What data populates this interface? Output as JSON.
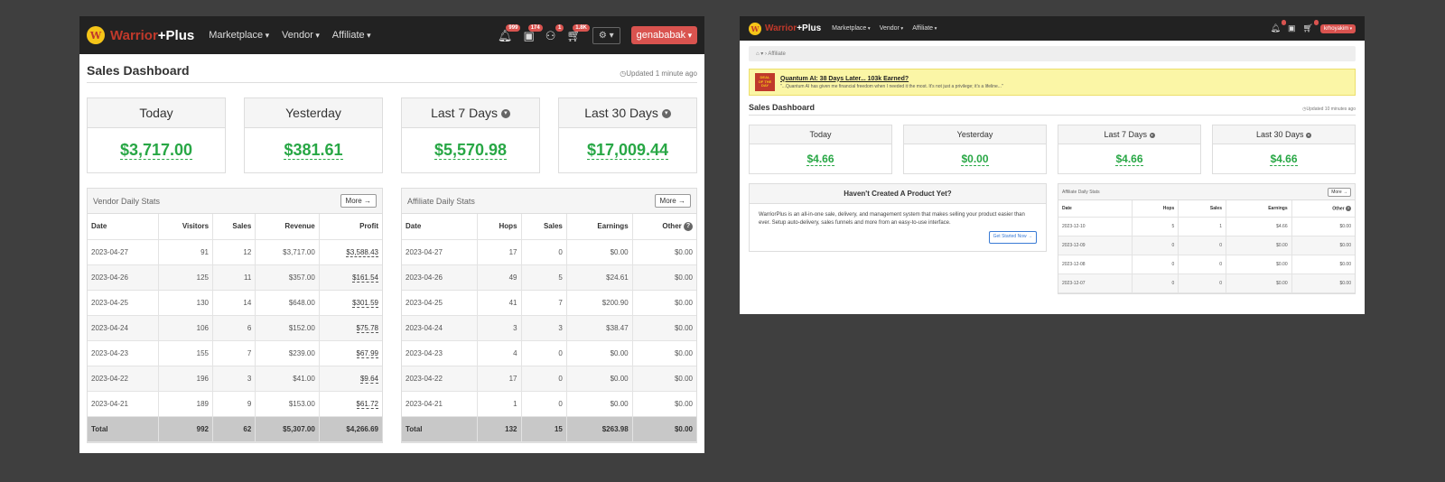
{
  "left": {
    "nav": {
      "logo_warrior": "Warrior",
      "logo_plus": "+Plus",
      "menu": [
        "Marketplace",
        "Vendor",
        "Affiliate"
      ],
      "badges": [
        "999",
        "174",
        "1",
        "1.8K"
      ],
      "user": "genababak"
    },
    "page_title": "Sales Dashboard",
    "updated": "Updated 1 minute ago",
    "cards": [
      {
        "label": "Today",
        "value": "$3,717.00"
      },
      {
        "label": "Yesterday",
        "value": "$381.61"
      },
      {
        "label": "Last 7 Days",
        "value": "$5,570.98"
      },
      {
        "label": "Last 30 Days",
        "value": "$17,009.44"
      }
    ],
    "vendor": {
      "title": "Vendor Daily Stats",
      "more": "More",
      "columns": [
        "Date",
        "Visitors",
        "Sales",
        "Revenue",
        "Profit"
      ],
      "rows": [
        [
          "2023-04-27",
          "91",
          "12",
          "$3,717.00",
          "$3,588.43"
        ],
        [
          "2023-04-26",
          "125",
          "11",
          "$357.00",
          "$161.54"
        ],
        [
          "2023-04-25",
          "130",
          "14",
          "$648.00",
          "$301.59"
        ],
        [
          "2023-04-24",
          "106",
          "6",
          "$152.00",
          "$75.78"
        ],
        [
          "2023-04-23",
          "155",
          "7",
          "$239.00",
          "$67.99"
        ],
        [
          "2023-04-22",
          "196",
          "3",
          "$41.00",
          "$9.64"
        ],
        [
          "2023-04-21",
          "189",
          "9",
          "$153.00",
          "$61.72"
        ]
      ],
      "total": [
        "Total",
        "992",
        "62",
        "$5,307.00",
        "$4,266.69"
      ]
    },
    "affiliate": {
      "title": "Affiliate Daily Stats",
      "more": "More",
      "columns": [
        "Date",
        "Hops",
        "Sales",
        "Earnings",
        "Other"
      ],
      "rows": [
        [
          "2023-04-27",
          "17",
          "0",
          "$0.00",
          "$0.00"
        ],
        [
          "2023-04-26",
          "49",
          "5",
          "$24.61",
          "$0.00"
        ],
        [
          "2023-04-25",
          "41",
          "7",
          "$200.90",
          "$0.00"
        ],
        [
          "2023-04-24",
          "3",
          "3",
          "$38.47",
          "$0.00"
        ],
        [
          "2023-04-23",
          "4",
          "0",
          "$0.00",
          "$0.00"
        ],
        [
          "2023-04-22",
          "17",
          "0",
          "$0.00",
          "$0.00"
        ],
        [
          "2023-04-21",
          "1",
          "0",
          "$0.00",
          "$0.00"
        ]
      ],
      "total": [
        "Total",
        "132",
        "15",
        "$263.98",
        "$0.00"
      ]
    }
  },
  "right": {
    "nav": {
      "logo_warrior": "Warrior",
      "logo_plus": "+Plus",
      "menu": [
        "Marketplace",
        "Vendor",
        "Affiliate"
      ],
      "user": "krhoyakim"
    },
    "breadcrumb": "Affiliate",
    "deal": {
      "badge_line1": "DEAL",
      "badge_line2": "OF THE",
      "badge_line3": "DAY",
      "title": "Quantum AI: 38 Days Later... 103k Earned?",
      "text": "\"...Quantum AI has given me financial freedom when I needed it the most. It's not just a privilege; it's a lifeline...\""
    },
    "page_title": "Sales Dashboard",
    "updated": "Updated 10 minutes ago",
    "cards": [
      {
        "label": "Today",
        "value": "$4.66"
      },
      {
        "label": "Yesterday",
        "value": "$0.00"
      },
      {
        "label": "Last 7 Days",
        "value": "$4.66"
      },
      {
        "label": "Last 30 Days",
        "value": "$4.66"
      }
    ],
    "empty": {
      "title": "Haven't Created A Product Yet?",
      "text": "WarriorPlus is an all-in-one sale, delivery, and management system that makes selling your product easier than ever. Setup auto-delivery, sales funnels and more from an easy-to-use interface.",
      "button": "Get Started Now"
    },
    "affiliate": {
      "title": "Affiliate Daily Stats",
      "more": "More",
      "columns": [
        "Date",
        "Hops",
        "Sales",
        "Earnings",
        "Other"
      ],
      "rows": [
        [
          "2023-12-10",
          "5",
          "1",
          "$4.66",
          "$0.00"
        ],
        [
          "2023-12-09",
          "0",
          "0",
          "$0.00",
          "$0.00"
        ],
        [
          "2023-12-08",
          "0",
          "0",
          "$0.00",
          "$0.00"
        ],
        [
          "2023-12-07",
          "0",
          "0",
          "$0.00",
          "$0.00"
        ]
      ]
    }
  }
}
